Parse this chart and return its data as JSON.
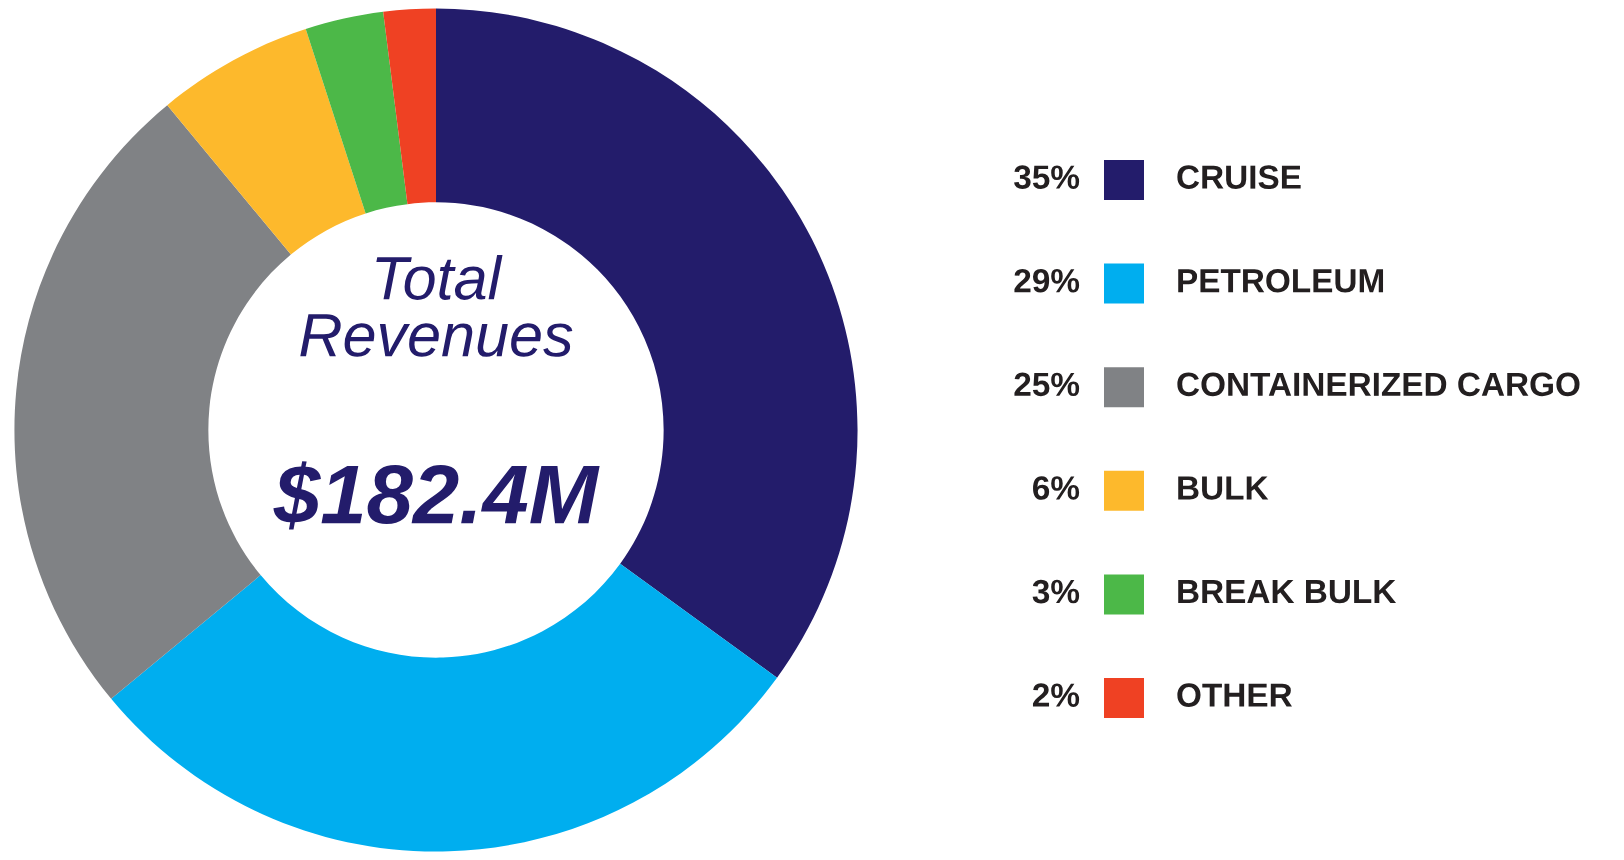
{
  "chart_data": {
    "type": "donut",
    "categories": [
      "CRUISE",
      "PETROLEUM",
      "CONTAINERIZED CARGO",
      "BULK",
      "BREAK BULK",
      "OTHER"
    ],
    "values": [
      35,
      29,
      25,
      6,
      3,
      2
    ],
    "colors": [
      "#231c6b",
      "#00aeef",
      "#808285",
      "#fdb92c",
      "#4cb848",
      "#ef4123"
    ],
    "value_labels": [
      "35%",
      "29%",
      "25%",
      "6%",
      "3%",
      "2%"
    ],
    "annotations": [
      "Total\nRevenues",
      "$182.4M"
    ],
    "legend": "right"
  }
}
